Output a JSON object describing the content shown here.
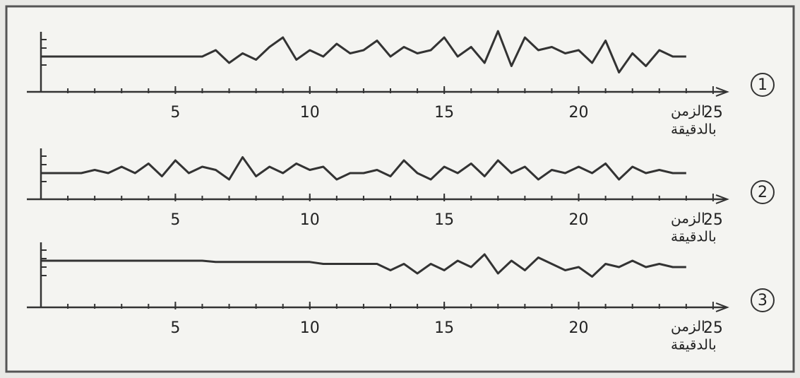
{
  "chart_data": [
    {
      "type": "line",
      "panel_label": "1",
      "x_label": [
        "الزمن",
        "بالدقيقة"
      ],
      "x": [
        0,
        0.5,
        1,
        1.5,
        2,
        2.5,
        3,
        3.5,
        4,
        4.5,
        5,
        5.5,
        6,
        6.5,
        7,
        7.5,
        8,
        8.5,
        9,
        9.5,
        10,
        10.5,
        11,
        11.5,
        12,
        12.5,
        13,
        13.5,
        14,
        14.5,
        15,
        15.5,
        16,
        16.5,
        17,
        17.5,
        18,
        18.5,
        19,
        19.5,
        20,
        20.5,
        21,
        21.5,
        22,
        22.5,
        23,
        23.5,
        24
      ],
      "values": [
        0,
        0,
        0,
        0,
        0,
        0,
        0,
        0,
        0,
        0,
        0,
        0,
        0,
        1,
        -1,
        0.5,
        -0.5,
        1.5,
        3,
        -0.5,
        1,
        0,
        2,
        0.5,
        1,
        2.5,
        0,
        1.5,
        0.5,
        1,
        3,
        0,
        1.5,
        -1,
        4,
        -1.5,
        3,
        1,
        1.5,
        0.5,
        1,
        -1,
        2.5,
        -2.5,
        0.5,
        -1.5,
        1,
        0,
        0
      ],
      "color": "#333333",
      "xlim": [
        0,
        26
      ],
      "ylim": [
        -5,
        5
      ],
      "xticks": [
        5,
        10,
        15,
        20,
        25
      ]
    },
    {
      "type": "line",
      "panel_label": "2",
      "x_label": [
        "الزمن",
        "بالدقيقة"
      ],
      "x": [
        0,
        0.5,
        1,
        1.5,
        2,
        2.5,
        3,
        3.5,
        4,
        4.5,
        5,
        5.5,
        6,
        6.5,
        7,
        7.5,
        8,
        8.5,
        9,
        9.5,
        10,
        10.5,
        11,
        11.5,
        12,
        12.5,
        13,
        13.5,
        14,
        14.5,
        15,
        15.5,
        16,
        16.5,
        17,
        17.5,
        18,
        18.5,
        19,
        19.5,
        20,
        20.5,
        21,
        21.5,
        22,
        22.5,
        23,
        23.5,
        24
      ],
      "values": [
        0,
        0,
        0,
        0,
        0.5,
        0,
        1,
        0,
        1.5,
        -0.5,
        2,
        0,
        1,
        0.5,
        -1,
        2.5,
        -0.5,
        1,
        0,
        1.5,
        0.5,
        1,
        -1,
        0,
        0,
        0.5,
        -0.5,
        2,
        0,
        -1,
        1,
        0,
        1.5,
        -0.5,
        2,
        0,
        1,
        -1,
        0.5,
        0,
        1,
        0,
        1.5,
        -1,
        1,
        0,
        0.5,
        0,
        0
      ],
      "color": "#333333",
      "xlim": [
        0,
        26
      ],
      "ylim": [
        -5,
        5
      ],
      "xticks": [
        5,
        10,
        15,
        20,
        25
      ]
    },
    {
      "type": "line",
      "panel_label": "3",
      "x_label": [
        "الزمن",
        "بالدقيقة"
      ],
      "x": [
        0,
        0.5,
        1,
        1.5,
        2,
        2.5,
        3,
        3.5,
        4,
        4.5,
        5,
        5.5,
        6,
        6.5,
        7,
        7.5,
        8,
        8.5,
        9,
        9.5,
        10,
        10.5,
        11,
        11.5,
        12,
        12.5,
        13,
        13.5,
        14,
        14.5,
        15,
        15.5,
        16,
        16.5,
        17,
        17.5,
        18,
        18.5,
        19,
        19.5,
        20,
        20.5,
        21,
        21.5,
        22,
        22.5,
        23,
        23.5,
        24
      ],
      "values": [
        1,
        1,
        1,
        1,
        1,
        1,
        1,
        1,
        1,
        1,
        1,
        1,
        1,
        0.8,
        0.8,
        0.8,
        0.8,
        0.8,
        0.8,
        0.8,
        0.8,
        0.5,
        0.5,
        0.5,
        0.5,
        0.5,
        -0.5,
        0.5,
        -1,
        0.5,
        -0.5,
        1,
        0,
        2,
        -1,
        1,
        -0.5,
        1.5,
        0.5,
        -0.5,
        0,
        -1.5,
        0.5,
        0,
        1,
        0,
        0.5,
        0,
        0
      ],
      "color": "#333333",
      "xlim": [
        0,
        26
      ],
      "ylim": [
        -5,
        5
      ],
      "xticks": [
        5,
        10,
        15,
        20,
        25
      ]
    }
  ]
}
